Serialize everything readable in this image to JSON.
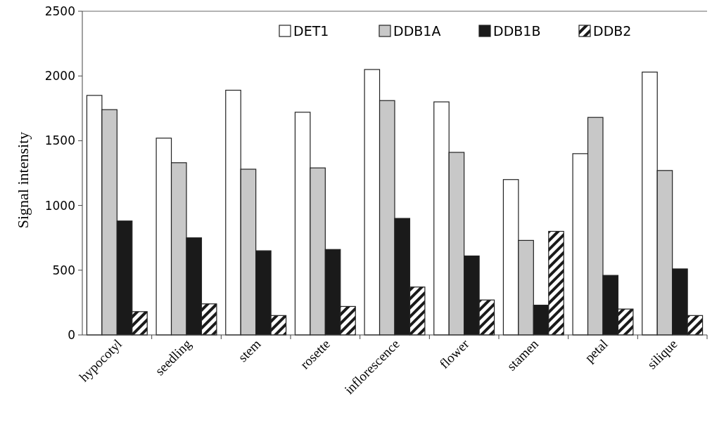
{
  "chart_data": {
    "type": "bar",
    "ylabel": "Signal intensity",
    "categories": [
      "hypocotyl",
      "seedling",
      "stem",
      "rosette",
      "inflorescence",
      "flower",
      "stamen",
      "petal",
      "silique"
    ],
    "series": [
      {
        "name": "DET1",
        "color": "#ffffff",
        "values": [
          1850,
          1520,
          1890,
          1720,
          2050,
          1800,
          1200,
          1400,
          2030
        ]
      },
      {
        "name": "DDB1A",
        "color": "#c8c8c8",
        "values": [
          1740,
          1330,
          1280,
          1290,
          1810,
          1410,
          730,
          1680,
          1270
        ]
      },
      {
        "name": "DDB1B",
        "color": "#1a1a1a",
        "values": [
          880,
          750,
          650,
          660,
          900,
          610,
          230,
          460,
          510
        ]
      },
      {
        "name": "DDB2",
        "color": "#1a1a1a",
        "values": [
          180,
          240,
          150,
          220,
          370,
          270,
          800,
          200,
          150
        ]
      }
    ],
    "ylim": [
      0,
      2500
    ],
    "yticks": [
      0,
      500,
      1000,
      1500,
      2000,
      2500
    ],
    "grid": false,
    "legend": "top right"
  }
}
